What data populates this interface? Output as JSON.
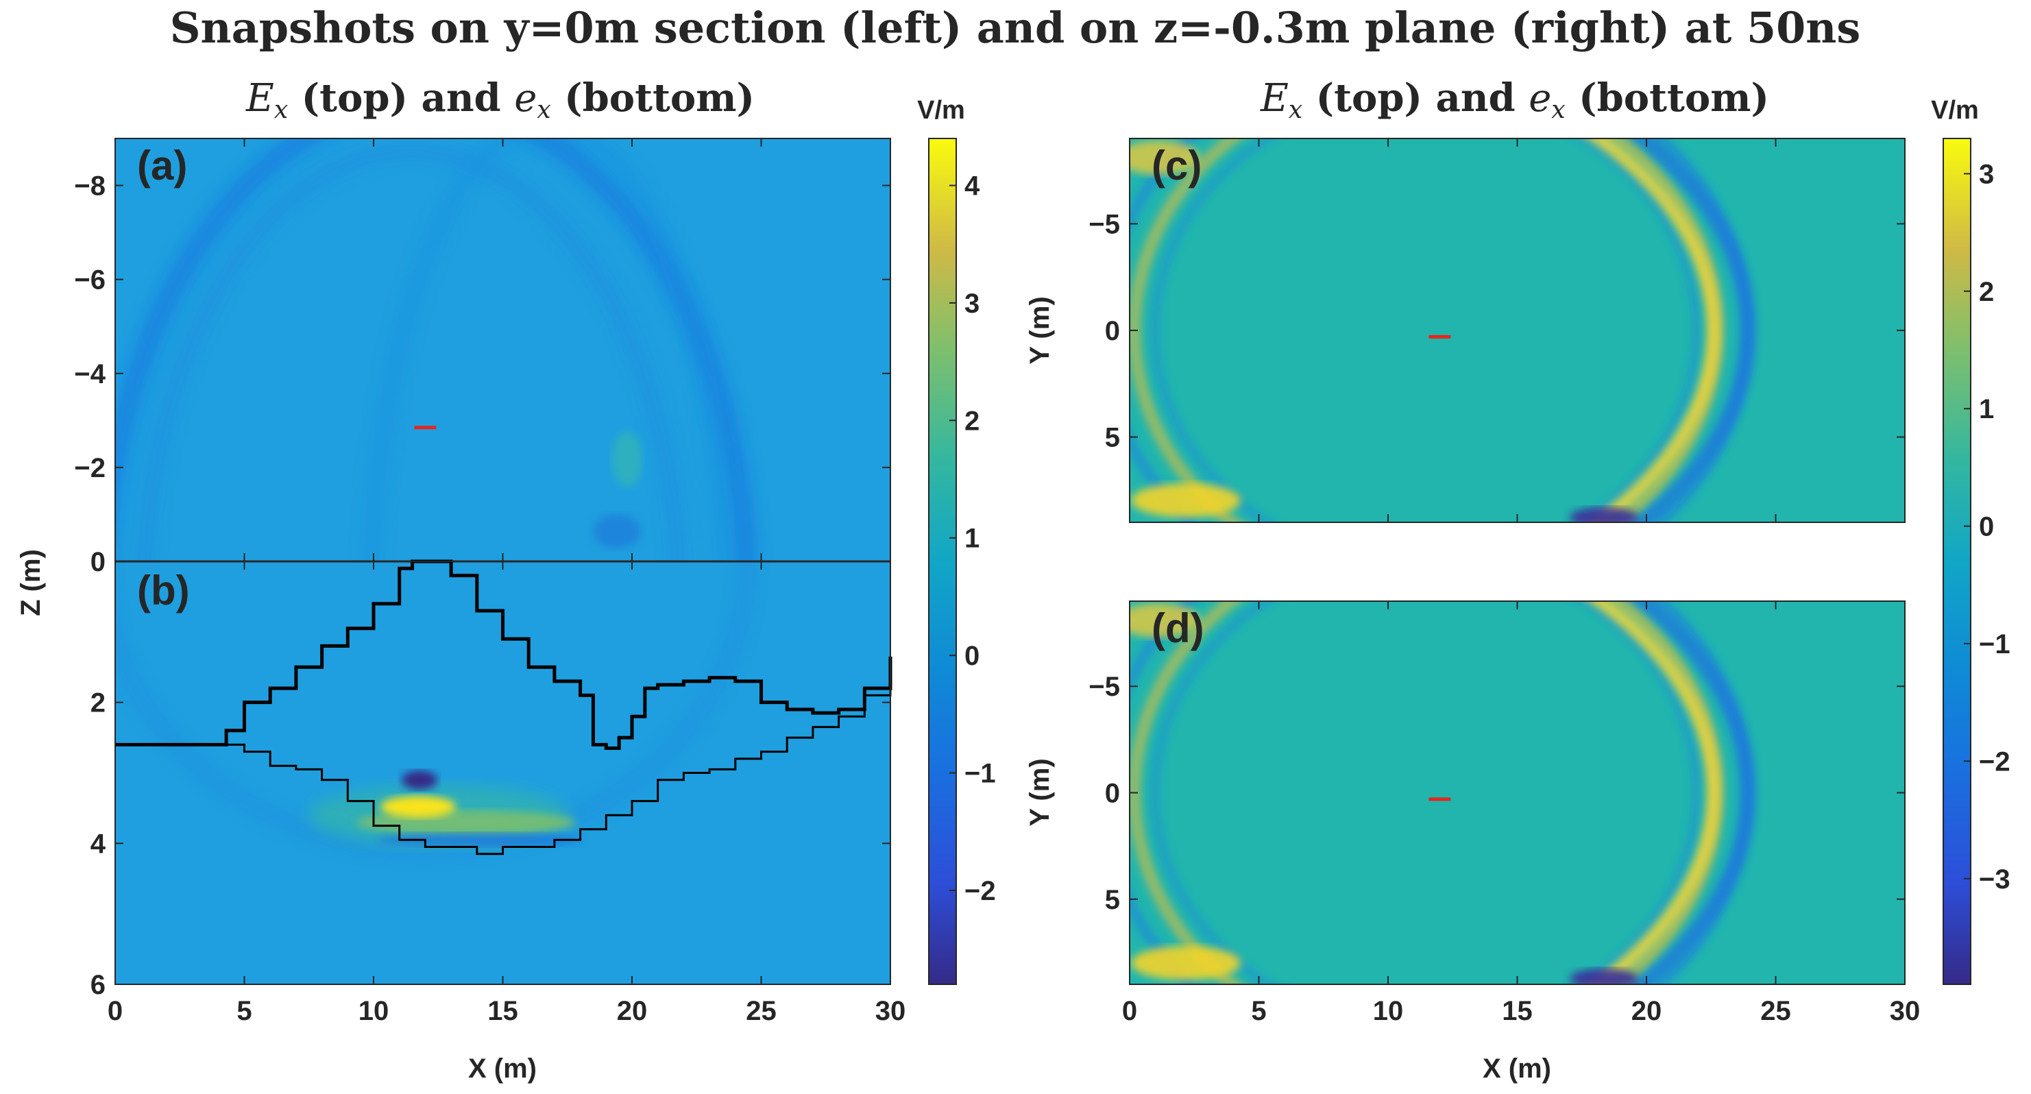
{
  "chart_data": {
    "type": "heatmap",
    "title": "Snapshots on y=0m section (left) and on z=-0.3m plane (right) at 50ns",
    "left_title": {
      "var1": "E",
      "sub1": "x",
      "txt1": " (top) and ",
      "var2": "e",
      "sub2": "x",
      "txt2": " (bottom)"
    },
    "right_title": {
      "var1": "E",
      "sub1": "x",
      "txt1": " (top) and ",
      "var2": "e",
      "sub2": "x",
      "txt2": " (bottom)"
    },
    "panels": [
      {
        "id": "a",
        "label": "(a)",
        "xlabel": "",
        "ylabel": "",
        "xlim": [
          0,
          30
        ],
        "ylim": [
          -9,
          0
        ],
        "yticks": [
          {
            "v": -8,
            "t": "−8"
          },
          {
            "v": -6,
            "t": "−6"
          },
          {
            "v": -4,
            "t": "−4"
          },
          {
            "v": -2,
            "t": "−2"
          }
        ]
      },
      {
        "id": "b",
        "label": "(b)",
        "xlabel": "X (m)",
        "ylabel": "Z (m)",
        "xlim": [
          0,
          30
        ],
        "ylim": [
          0,
          6
        ],
        "yticks": [
          {
            "v": 0,
            "t": "0"
          },
          {
            "v": 2,
            "t": "2"
          },
          {
            "v": 4,
            "t": "4"
          },
          {
            "v": 6,
            "t": "6"
          }
        ]
      },
      {
        "id": "c",
        "label": "(c)",
        "xlabel": "",
        "ylabel": "Y (m)",
        "xlim": [
          0,
          30
        ],
        "ylim": [
          -9,
          9
        ],
        "yticks": [
          {
            "v": -5,
            "t": "−5"
          },
          {
            "v": 0,
            "t": "0"
          },
          {
            "v": 5,
            "t": "5"
          }
        ]
      },
      {
        "id": "d",
        "label": "(d)",
        "xlabel": "X (m)",
        "ylabel": "Y (m)",
        "xlim": [
          0,
          30
        ],
        "ylim": [
          -9,
          9
        ],
        "yticks": [
          {
            "v": -5,
            "t": "−5"
          },
          {
            "v": 0,
            "t": "0"
          },
          {
            "v": 5,
            "t": "5"
          }
        ]
      }
    ],
    "xticks": [
      {
        "v": 0,
        "t": "0"
      },
      {
        "v": 5,
        "t": "5"
      },
      {
        "v": 10,
        "t": "10"
      },
      {
        "v": 15,
        "t": "15"
      },
      {
        "v": 20,
        "t": "20"
      },
      {
        "v": 25,
        "t": "25"
      },
      {
        "v": 30,
        "t": "30"
      }
    ],
    "colorbars": [
      {
        "unit": "V/m",
        "range": [
          -2.8,
          4.4
        ],
        "ticks": [
          {
            "v": -2,
            "t": "−2"
          },
          {
            "v": -1,
            "t": "−1"
          },
          {
            "v": 0,
            "t": "0"
          },
          {
            "v": 1,
            "t": "1"
          },
          {
            "v": 2,
            "t": "2"
          },
          {
            "v": 3,
            "t": "3"
          },
          {
            "v": 4,
            "t": "4"
          }
        ]
      },
      {
        "unit": "V/m",
        "range": [
          -3.9,
          3.3
        ],
        "ticks": [
          {
            "v": -3,
            "t": "−3"
          },
          {
            "v": -2,
            "t": "−2"
          },
          {
            "v": -1,
            "t": "−1"
          },
          {
            "v": 0,
            "t": "0"
          },
          {
            "v": 1,
            "t": "1"
          },
          {
            "v": 2,
            "t": "2"
          },
          {
            "v": 3,
            "t": "3"
          }
        ]
      }
    ],
    "source_marker": {
      "color": "#e8251c",
      "a": {
        "x": 12,
        "z": -2.85
      },
      "cd": {
        "x": 12,
        "y": 0.3
      }
    },
    "terrain_upper": [
      [
        0,
        2.6
      ],
      [
        3.8,
        2.6
      ],
      [
        4.3,
        2.4
      ],
      [
        5,
        2.0
      ],
      [
        6,
        1.8
      ],
      [
        7,
        1.5
      ],
      [
        8,
        1.2
      ],
      [
        9,
        0.95
      ],
      [
        10,
        0.6
      ],
      [
        11,
        0.1
      ],
      [
        11.5,
        0.0
      ],
      [
        12.5,
        0.0
      ],
      [
        13,
        0.2
      ],
      [
        14,
        0.7
      ],
      [
        15,
        1.1
      ],
      [
        16,
        1.5
      ],
      [
        17,
        1.7
      ],
      [
        18,
        1.9
      ],
      [
        18.5,
        2.6
      ],
      [
        19,
        2.65
      ],
      [
        19.5,
        2.5
      ],
      [
        20,
        2.2
      ],
      [
        20.5,
        1.8
      ],
      [
        21,
        1.75
      ],
      [
        22,
        1.7
      ],
      [
        23,
        1.65
      ],
      [
        24,
        1.7
      ],
      [
        25,
        2.0
      ],
      [
        26,
        2.1
      ],
      [
        27,
        2.15
      ],
      [
        28,
        2.1
      ],
      [
        29,
        1.8
      ],
      [
        30,
        1.35
      ]
    ],
    "terrain_lower": [
      [
        0,
        2.6
      ],
      [
        4,
        2.6
      ],
      [
        5,
        2.7
      ],
      [
        6,
        2.9
      ],
      [
        7,
        2.95
      ],
      [
        8,
        3.1
      ],
      [
        9,
        3.4
      ],
      [
        10,
        3.75
      ],
      [
        11,
        3.95
      ],
      [
        12,
        4.05
      ],
      [
        13,
        4.05
      ],
      [
        14,
        4.15
      ],
      [
        15,
        4.05
      ],
      [
        16,
        4.05
      ],
      [
        17,
        3.95
      ],
      [
        18,
        3.8
      ],
      [
        19,
        3.6
      ],
      [
        20,
        3.4
      ],
      [
        21,
        3.1
      ],
      [
        22,
        3.0
      ],
      [
        23,
        2.95
      ],
      [
        24,
        2.8
      ],
      [
        25,
        2.7
      ],
      [
        26,
        2.5
      ],
      [
        27,
        2.35
      ],
      [
        28,
        2.2
      ],
      [
        29,
        1.9
      ],
      [
        30,
        1.5
      ]
    ],
    "colors": {
      "background": "#1f9fdf",
      "field_bg_right": "#21b5ae",
      "axis": "#262626"
    }
  }
}
